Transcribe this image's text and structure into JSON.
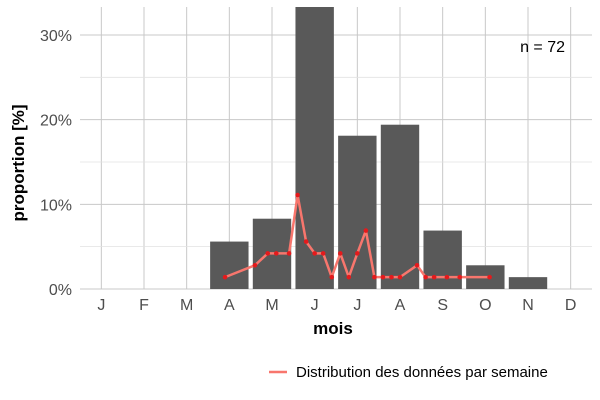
{
  "chart_data": {
    "type": "bar",
    "xlabel": "mois",
    "ylabel": "proportion [%]",
    "categories": [
      "J",
      "F",
      "M",
      "A",
      "M",
      "J",
      "J",
      "A",
      "S",
      "O",
      "N",
      "D"
    ],
    "values": [
      0,
      0,
      0,
      5.6,
      8.3,
      33.3,
      18.1,
      19.4,
      6.9,
      2.8,
      1.4,
      0
    ],
    "ylim": [
      0,
      33.3
    ],
    "yticks": [
      0,
      10,
      20,
      30
    ],
    "ytick_labels": [
      "0%",
      "10%",
      "20%",
      "30%"
    ],
    "grid": true,
    "annotation": "n = 72",
    "legend_position": "bottom-right",
    "colors": {
      "bar": "#595959",
      "line": "#f8766d",
      "point": "#e41a1c",
      "grid": "#c8c8c8"
    },
    "line_series": {
      "name": "Distribution des données par semaine",
      "x": [
        3.4,
        4.1,
        4.4,
        4.6,
        4.9,
        5.1,
        5.3,
        5.5,
        5.7,
        5.9,
        6.1,
        6.3,
        6.5,
        6.7,
        6.9,
        7.1,
        7.3,
        7.5,
        7.9,
        8.1,
        8.3,
        8.6,
        8.9,
        9.6
      ],
      "y": [
        1.4,
        2.8,
        4.2,
        4.2,
        4.2,
        11.1,
        5.6,
        4.2,
        4.2,
        1.4,
        4.2,
        1.4,
        4.2,
        6.9,
        1.4,
        1.4,
        1.4,
        1.4,
        2.8,
        1.4,
        1.4,
        1.4,
        1.4,
        1.4
      ]
    }
  }
}
